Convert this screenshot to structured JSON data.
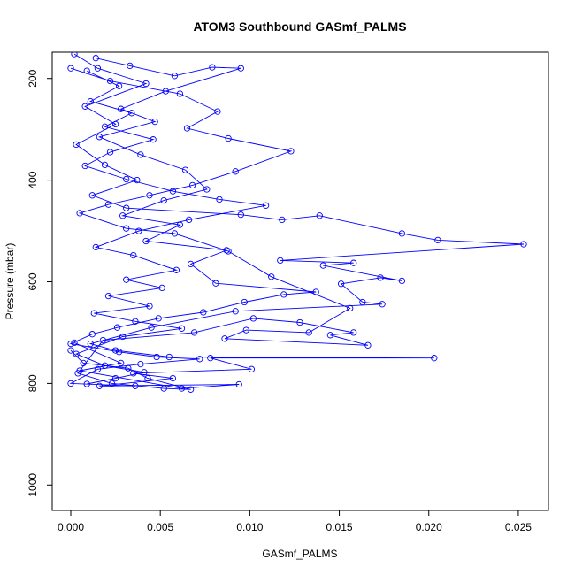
{
  "chart_data": {
    "type": "line",
    "title": "ATOM3 Southbound GASmf_PALMS",
    "xlabel": "GASmf_PALMS",
    "ylabel": "Pressure (mbar)",
    "xlim": [
      0.0,
      0.0253
    ],
    "ylim": [
      1050,
      150
    ],
    "y_reversed": true,
    "grid": false,
    "line_color": "#0000ff",
    "x_ticks": [
      0.0,
      0.005,
      0.01,
      0.015,
      0.02,
      0.025
    ],
    "x_tick_labels": [
      "0.000",
      "0.005",
      "0.010",
      "0.015",
      "0.020",
      "0.025"
    ],
    "y_ticks": [
      200,
      400,
      600,
      800,
      1000
    ],
    "y_tick_labels": [
      "200",
      "400",
      "600",
      "800",
      "1000"
    ],
    "series": [
      {
        "marker": "open-circle",
        "points": [
          [
            0.0002,
            152
          ],
          [
            0.0015,
            180
          ],
          [
            0.0042,
            210
          ],
          [
            0.0008,
            255
          ],
          [
            0.0025,
            290
          ],
          [
            0.0003,
            330
          ],
          [
            0.0019,
            370
          ],
          [
            0.0037,
            400
          ],
          [
            0.0012,
            430
          ],
          [
            0.0031,
            455
          ],
          [
            0.0095,
            468
          ],
          [
            0.0118,
            478
          ],
          [
            0.0139,
            470
          ],
          [
            0.0185,
            505
          ],
          [
            0.0205,
            518
          ],
          [
            0.0253,
            526
          ],
          [
            0.0117,
            558
          ],
          [
            0.0158,
            563
          ],
          [
            0.0141,
            568
          ],
          [
            0.0185,
            598
          ],
          [
            0.0173,
            592
          ],
          [
            0.0151,
            604
          ],
          [
            0.0163,
            640
          ],
          [
            0.0174,
            644
          ],
          [
            0.0092,
            658
          ],
          [
            0.0045,
            690
          ],
          [
            0.0011,
            722
          ],
          [
            0.0025,
            735
          ],
          [
            0.0055,
            748
          ],
          [
            0.0203,
            750
          ],
          [
            0.0078,
            750
          ],
          [
            0.0101,
            772
          ],
          [
            0.0035,
            780
          ],
          [
            0.0057,
            790
          ],
          [
            0.0016,
            805
          ],
          [
            0.0094,
            802
          ],
          [
            0.0062,
            810
          ],
          [
            0.0005,
            775
          ],
          [
            0.0028,
            760
          ],
          [
            0.0002,
            720
          ]
        ]
      },
      {
        "marker": "open-circle",
        "points": [
          [
            0.0,
            180
          ],
          [
            0.0022,
            205
          ],
          [
            0.0061,
            230
          ],
          [
            0.0082,
            265
          ],
          [
            0.0065,
            298
          ],
          [
            0.0088,
            318
          ],
          [
            0.0123,
            343
          ],
          [
            0.0092,
            383
          ],
          [
            0.0068,
            410
          ],
          [
            0.0044,
            430
          ],
          [
            0.0021,
            448
          ],
          [
            0.0005,
            465
          ],
          [
            0.0031,
            495
          ],
          [
            0.0058,
            505
          ],
          [
            0.0088,
            540
          ],
          [
            0.0112,
            590
          ],
          [
            0.0156,
            652
          ],
          [
            0.0133,
            700
          ],
          [
            0.0098,
            695
          ],
          [
            0.0086,
            712
          ],
          [
            0.0166,
            725
          ],
          [
            0.0145,
            705
          ],
          [
            0.0158,
            700
          ],
          [
            0.0128,
            680
          ],
          [
            0.0102,
            672
          ],
          [
            0.0069,
            700
          ],
          [
            0.0018,
            715
          ],
          [
            0.0004,
            780
          ],
          [
            0.0023,
            800
          ],
          [
            0.0052,
            810
          ],
          [
            0.0067,
            812
          ],
          [
            0.0043,
            790
          ],
          [
            0.0032,
            770
          ],
          [
            0.0007,
            760
          ],
          [
            0.0,
            735
          ]
        ]
      },
      {
        "marker": "open-circle",
        "points": [
          [
            0.0014,
            160
          ],
          [
            0.0033,
            175
          ],
          [
            0.0058,
            195
          ],
          [
            0.0079,
            178
          ],
          [
            0.0095,
            180
          ],
          [
            0.0053,
            225
          ],
          [
            0.0028,
            260
          ],
          [
            0.0047,
            285
          ],
          [
            0.0016,
            315
          ],
          [
            0.0039,
            350
          ],
          [
            0.0064,
            380
          ],
          [
            0.0076,
            418
          ],
          [
            0.0052,
            440
          ],
          [
            0.0029,
            470
          ],
          [
            0.0061,
            488
          ],
          [
            0.0042,
            520
          ],
          [
            0.0087,
            538
          ],
          [
            0.0067,
            565
          ],
          [
            0.0081,
            603
          ],
          [
            0.0137,
            620
          ],
          [
            0.0119,
            625
          ],
          [
            0.0097,
            640
          ],
          [
            0.0074,
            660
          ],
          [
            0.0049,
            672
          ],
          [
            0.0026,
            690
          ],
          [
            0.0012,
            703
          ],
          [
            0.0,
            722
          ],
          [
            0.0027,
            738
          ],
          [
            0.0048,
            748
          ],
          [
            0.0072,
            752
          ],
          [
            0.0039,
            762
          ],
          [
            0.0015,
            772
          ],
          [
            0.0,
            800
          ],
          [
            0.0036,
            805
          ]
        ]
      },
      {
        "marker": "open-circle",
        "points": [
          [
            0.0009,
            185
          ],
          [
            0.0027,
            215
          ],
          [
            0.0011,
            245
          ],
          [
            0.0034,
            268
          ],
          [
            0.0019,
            295
          ],
          [
            0.0046,
            320
          ],
          [
            0.0022,
            345
          ],
          [
            0.0008,
            372
          ],
          [
            0.0031,
            398
          ],
          [
            0.0057,
            422
          ],
          [
            0.0083,
            438
          ],
          [
            0.0109,
            450
          ],
          [
            0.0066,
            478
          ],
          [
            0.0038,
            500
          ],
          [
            0.0014,
            532
          ],
          [
            0.0035,
            548
          ],
          [
            0.0059,
            577
          ],
          [
            0.0031,
            596
          ],
          [
            0.0051,
            612
          ],
          [
            0.0021,
            628
          ],
          [
            0.0044,
            648
          ],
          [
            0.0013,
            662
          ],
          [
            0.0036,
            678
          ],
          [
            0.0062,
            692
          ],
          [
            0.0029,
            708
          ],
          [
            0.0003,
            742
          ],
          [
            0.0019,
            765
          ],
          [
            0.0041,
            778
          ],
          [
            0.0025,
            790
          ],
          [
            0.0009,
            801
          ]
        ]
      }
    ]
  }
}
